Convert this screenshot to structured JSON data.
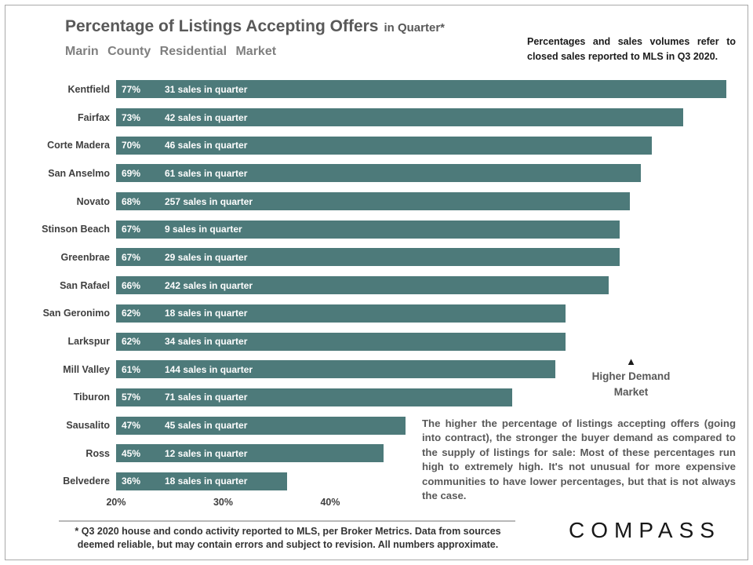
{
  "chart_data": {
    "type": "bar",
    "orientation": "horizontal",
    "title": "Percentage of Listings Accepting Offers",
    "title_suffix": "in Quarter*",
    "subtitle": "Marin County Residential Market",
    "source_note": "Percentages and sales volumes refer to closed sales reported to MLS in Q3 2020.",
    "bar_color": "#4d7a7a",
    "x_axis": {
      "min": 20,
      "ticks": [
        {
          "label": "20%",
          "value": 20
        },
        {
          "label": "30%",
          "value": 30
        },
        {
          "label": "40%",
          "value": 40
        }
      ]
    },
    "rows": [
      {
        "label": "Kentfield",
        "pct": 77,
        "pct_label": "77%",
        "sales": "31 sales in quarter"
      },
      {
        "label": "Fairfax",
        "pct": 73,
        "pct_label": "73%",
        "sales": "42 sales in quarter"
      },
      {
        "label": "Corte Madera",
        "pct": 70,
        "pct_label": "70%",
        "sales": "46 sales in quarter"
      },
      {
        "label": "San Anselmo",
        "pct": 69,
        "pct_label": "69%",
        "sales": "61 sales in quarter"
      },
      {
        "label": "Novato",
        "pct": 68,
        "pct_label": "68%",
        "sales": "257 sales in quarter"
      },
      {
        "label": "Stinson Beach",
        "pct": 67,
        "pct_label": "67%",
        "sales": "9 sales in quarter"
      },
      {
        "label": "Greenbrae",
        "pct": 67,
        "pct_label": "67%",
        "sales": "29 sales in quarter"
      },
      {
        "label": "San Rafael",
        "pct": 66,
        "pct_label": "66%",
        "sales": "242 sales in quarter"
      },
      {
        "label": "San Geronimo",
        "pct": 62,
        "pct_label": "62%",
        "sales": "18 sales in quarter"
      },
      {
        "label": "Larkspur",
        "pct": 62,
        "pct_label": "62%",
        "sales": "34 sales in quarter"
      },
      {
        "label": "Mill Valley",
        "pct": 61,
        "pct_label": "61%",
        "sales": "144 sales in quarter"
      },
      {
        "label": "Tiburon",
        "pct": 57,
        "pct_label": "57%",
        "sales": "71 sales in quarter"
      },
      {
        "label": "Sausalito",
        "pct": 47,
        "pct_label": "47%",
        "sales": "45 sales in quarter"
      },
      {
        "label": "Ross",
        "pct": 45,
        "pct_label": "45%",
        "sales": "12 sales in quarter"
      },
      {
        "label": "Belvedere",
        "pct": 36,
        "pct_label": "36%",
        "sales": "18 sales in quarter"
      }
    ]
  },
  "annotation": {
    "symbol": "▲",
    "text_line1": "Higher Demand",
    "text_line2": "Market"
  },
  "commentary": "The higher the percentage of listings accepting offers (going into contract), the stronger the buyer demand as compared to the supply of listings for sale: Most of these percentages run high to extremely high. It's not unusual for more expensive communities to have lower percentages, but that is not always the case.",
  "footer": {
    "footnote_line1": "* Q3 2020 house and condo activity reported to MLS, per Broker Metrics. Data from sources",
    "footnote_line2": "deemed reliable, but may contain errors and subject to revision. All numbers approximate.",
    "logo": "COMPASS"
  }
}
